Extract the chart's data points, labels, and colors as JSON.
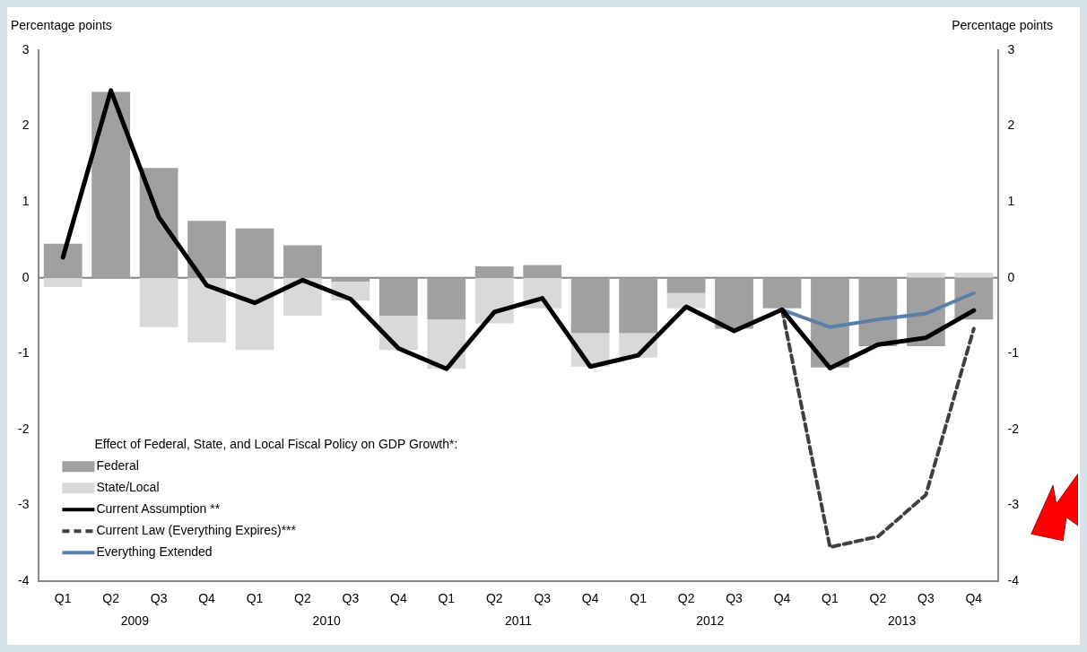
{
  "chart_data": {
    "type": "bar",
    "ylabel": "Percentage points",
    "y2label": "Percentage points",
    "legend_title": "Effect of Federal, State, and Local Fiscal Policy on GDP Growth*:",
    "categories": [
      "Q1",
      "Q2",
      "Q3",
      "Q4",
      "Q1",
      "Q2",
      "Q3",
      "Q4",
      "Q1",
      "Q2",
      "Q3",
      "Q4",
      "Q1",
      "Q2",
      "Q3",
      "Q4",
      "Q1",
      "Q2",
      "Q3",
      "Q4"
    ],
    "stacked": true,
    "series": [
      {
        "name": "Federal",
        "color": "#a0a0a0",
        "values": [
          0.45,
          2.45,
          1.45,
          0.75,
          0.65,
          0.43,
          -0.05,
          -0.5,
          -0.55,
          0.15,
          0.17,
          -0.73,
          -0.73,
          -0.2,
          -0.67,
          -0.4,
          -1.18,
          -0.9,
          -0.9,
          -0.55
        ]
      },
      {
        "name": "State/Local",
        "color": "#d9d9d9",
        "values": [
          -0.12,
          0,
          -0.65,
          -0.85,
          -0.95,
          -0.5,
          -0.25,
          -0.45,
          -0.65,
          -0.6,
          -0.4,
          -0.44,
          -0.32,
          -0.2,
          0,
          0,
          0,
          0,
          0.07,
          0.07
        ]
      },
      {
        "name": "Current Assumption **",
        "type": "line",
        "color": "#000000",
        "line_style": "solid",
        "values": [
          0.27,
          2.47,
          0.8,
          -0.1,
          -0.33,
          -0.03,
          -0.28,
          -0.93,
          -1.2,
          -0.45,
          -0.27,
          -1.17,
          -1.02,
          -0.38,
          -0.7,
          -0.42,
          -1.19,
          -0.88,
          -0.79,
          -0.43
        ]
      },
      {
        "name": "Current Law (Everything Expires)***",
        "type": "line",
        "color": "#404040",
        "line_style": "dashed",
        "values": [
          null,
          null,
          null,
          null,
          null,
          null,
          null,
          null,
          null,
          null,
          null,
          null,
          null,
          null,
          null,
          -0.42,
          -3.55,
          -3.41,
          -2.86,
          -0.67
        ]
      },
      {
        "name": "Everything Extended",
        "type": "line",
        "color": "#5b80a8",
        "line_style": "solid",
        "values": [
          null,
          null,
          null,
          null,
          null,
          null,
          null,
          null,
          null,
          null,
          null,
          null,
          null,
          null,
          null,
          -0.42,
          -0.65,
          -0.55,
          -0.47,
          -0.2
        ]
      }
    ],
    "ylim": [
      -4,
      3
    ],
    "yticks": [
      -4,
      -3,
      -2,
      -1,
      0,
      1,
      2,
      3
    ],
    "y2lim": [
      -4,
      3
    ],
    "y2ticks": [
      -4,
      -3,
      -2,
      -1,
      0,
      1,
      2,
      3
    ],
    "ref_lines": [
      {
        "axis": "y",
        "value": 0,
        "color": "#888888"
      }
    ],
    "legend": "bottom left",
    "marker": "none",
    "annotations": [
      "2009",
      "2010",
      "2011",
      "2012",
      "2013"
    ]
  }
}
